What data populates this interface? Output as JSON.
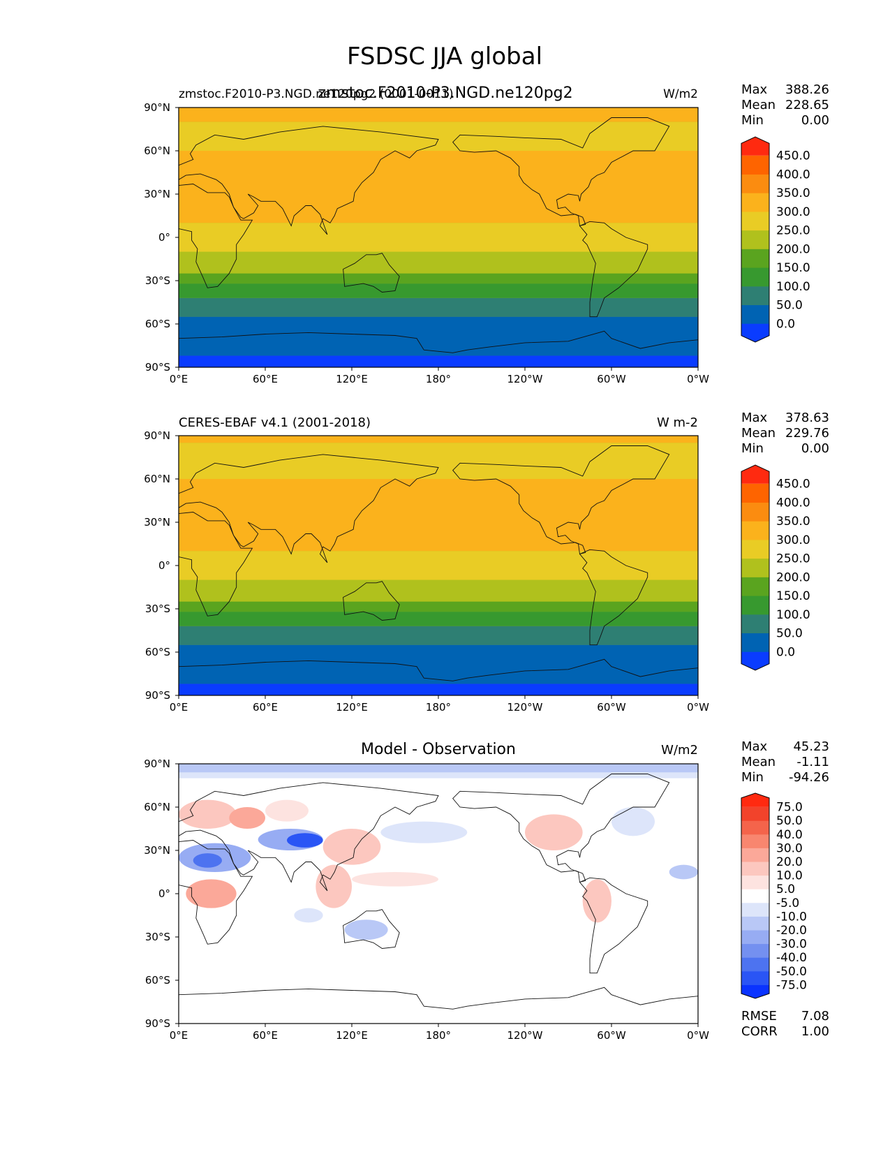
{
  "figure": {
    "title": "FSDSC JJA global"
  },
  "panels": [
    {
      "name": "model",
      "title_left": "zmstoc.F2010-P3.NGD.ne120pg2 (0001-0011)",
      "title_center": "zmstoc.F2010-P3.NGD.ne120pg2",
      "units": "W/m2",
      "stats": {
        "max_label": "Max",
        "max": "388.26",
        "mean_label": "Mean",
        "mean": "228.65",
        "min_label": "Min",
        "min": "0.00"
      },
      "zonal_bands": [
        {
          "lat_top": 90,
          "lat_bottom": 80,
          "value": 300
        },
        {
          "lat_top": 80,
          "lat_bottom": 60,
          "value": 280
        },
        {
          "lat_top": 60,
          "lat_bottom": 10,
          "value": 320
        },
        {
          "lat_top": 10,
          "lat_bottom": 0,
          "value": 280
        },
        {
          "lat_top": 0,
          "lat_bottom": -10,
          "value": 260
        },
        {
          "lat_top": -10,
          "lat_bottom": -25,
          "value": 225
        },
        {
          "lat_top": -25,
          "lat_bottom": -32,
          "value": 175
        },
        {
          "lat_top": -32,
          "lat_bottom": -42,
          "value": 125
        },
        {
          "lat_top": -42,
          "lat_bottom": -55,
          "value": 75
        },
        {
          "lat_top": -55,
          "lat_bottom": -82,
          "value": 25
        },
        {
          "lat_top": -82,
          "lat_bottom": -90,
          "value": -10
        }
      ]
    },
    {
      "name": "observation",
      "title_left": "CERES-EBAF v4.1 (2001-2018)",
      "title_center": "",
      "units": "W m-2",
      "stats": {
        "max_label": "Max",
        "max": "378.63",
        "mean_label": "Mean",
        "mean": "229.76",
        "min_label": "Min",
        "min": "0.00"
      },
      "zonal_bands": [
        {
          "lat_top": 90,
          "lat_bottom": 85,
          "value": 320
        },
        {
          "lat_top": 85,
          "lat_bottom": 60,
          "value": 280
        },
        {
          "lat_top": 60,
          "lat_bottom": 10,
          "value": 320
        },
        {
          "lat_top": 10,
          "lat_bottom": 0,
          "value": 280
        },
        {
          "lat_top": 0,
          "lat_bottom": -10,
          "value": 260
        },
        {
          "lat_top": -10,
          "lat_bottom": -25,
          "value": 225
        },
        {
          "lat_top": -25,
          "lat_bottom": -32,
          "value": 175
        },
        {
          "lat_top": -32,
          "lat_bottom": -42,
          "value": 125
        },
        {
          "lat_top": -42,
          "lat_bottom": -55,
          "value": 75
        },
        {
          "lat_top": -55,
          "lat_bottom": -82,
          "value": 25
        },
        {
          "lat_top": -82,
          "lat_bottom": -90,
          "value": -10
        }
      ]
    },
    {
      "name": "difference",
      "title_left": "",
      "title_center": "Model - Observation",
      "units": "W/m2",
      "stats": {
        "max_label": "Max",
        "max": "45.23",
        "mean_label": "Mean",
        "mean": "-1.11",
        "min_label": "Min",
        "min": "-94.26"
      },
      "metrics": {
        "rmse_label": "RMSE",
        "rmse": "7.08",
        "corr_label": "CORR",
        "corr": "1.00"
      },
      "zonal_bands": [
        {
          "lat_top": 90,
          "lat_bottom": 84,
          "value": -12
        },
        {
          "lat_top": 84,
          "lat_bottom": 80,
          "value": -7
        }
      ],
      "anomalies": [
        {
          "lon_min": 0,
          "lon_max": 40,
          "lat_min": 45,
          "lat_max": 65,
          "value": 12
        },
        {
          "lon_min": 35,
          "lon_max": 60,
          "lat_min": 45,
          "lat_max": 60,
          "value": 25
        },
        {
          "lon_min": 60,
          "lon_max": 90,
          "lat_min": 50,
          "lat_max": 65,
          "value": 7
        },
        {
          "lon_min": 0,
          "lon_max": 50,
          "lat_min": 15,
          "lat_max": 35,
          "value": -30
        },
        {
          "lon_min": 10,
          "lon_max": 30,
          "lat_min": 18,
          "lat_max": 28,
          "value": -45
        },
        {
          "lon_min": 55,
          "lon_max": 100,
          "lat_min": 30,
          "lat_max": 45,
          "value": -25
        },
        {
          "lon_min": 75,
          "lon_max": 100,
          "lat_min": 32,
          "lat_max": 42,
          "value": -60
        },
        {
          "lon_min": 100,
          "lon_max": 140,
          "lat_min": 20,
          "lat_max": 45,
          "value": 12
        },
        {
          "lon_min": 140,
          "lon_max": 200,
          "lat_min": 35,
          "lat_max": 50,
          "value": -7
        },
        {
          "lon_min": 95,
          "lon_max": 120,
          "lat_min": -10,
          "lat_max": 20,
          "value": 15
        },
        {
          "lon_min": 120,
          "lon_max": 180,
          "lat_min": 5,
          "lat_max": 15,
          "value": 7
        },
        {
          "lon_min": 5,
          "lon_max": 40,
          "lat_min": -10,
          "lat_max": 10,
          "value": 25
        },
        {
          "lon_min": 80,
          "lon_max": 100,
          "lat_min": -20,
          "lat_max": -10,
          "value": -7
        },
        {
          "lon_min": 115,
          "lon_max": 145,
          "lat_min": -32,
          "lat_max": -18,
          "value": -12
        },
        {
          "lon_min": 240,
          "lon_max": 280,
          "lat_min": 30,
          "lat_max": 55,
          "value": 15
        },
        {
          "lon_min": 280,
          "lon_max": 300,
          "lat_min": -20,
          "lat_max": 10,
          "value": 15
        },
        {
          "lon_min": 300,
          "lon_max": 330,
          "lat_min": 40,
          "lat_max": 60,
          "value": -7
        },
        {
          "lon_min": 340,
          "lon_max": 360,
          "lat_min": 10,
          "lat_max": 20,
          "value": -12
        }
      ]
    }
  ],
  "colorbars": {
    "absolute": {
      "levels": [
        0,
        50,
        100,
        150,
        200,
        250,
        300,
        350,
        400,
        450
      ],
      "tick_labels": [
        "0.0",
        "50.0",
        "100.0",
        "150.0",
        "200.0",
        "250.0",
        "300.0",
        "350.0",
        "400.0",
        "450.0"
      ],
      "colors": [
        "#0a3cff",
        "#0063b3",
        "#2e7f73",
        "#37992f",
        "#5aa41f",
        "#b0c11d",
        "#e9cc25",
        "#fbb21c",
        "#fb8c10",
        "#fe6400",
        "#ff2a10"
      ]
    },
    "difference": {
      "levels": [
        -75,
        -50,
        -40,
        -30,
        -20,
        -10,
        -5,
        5,
        10,
        20,
        30,
        40,
        50,
        75
      ],
      "tick_labels": [
        "-75.0",
        "-50.0",
        "-40.0",
        "-30.0",
        "-20.0",
        "-10.0",
        "-5.0",
        "5.0",
        "10.0",
        "20.0",
        "30.0",
        "40.0",
        "50.0",
        "75.0"
      ],
      "colors": [
        "#0a33ff",
        "#2a55f5",
        "#4d73f0",
        "#7490f0",
        "#97acf3",
        "#b9c8f6",
        "#dde5fa",
        "#ffffff",
        "#fde3e0",
        "#fcc7bf",
        "#fba899",
        "#f8866f",
        "#f4644b",
        "#f2432b",
        "#ff2a10"
      ]
    }
  },
  "axes": {
    "lat_ticks": [
      "90°N",
      "60°N",
      "30°N",
      "0°",
      "30°S",
      "60°S",
      "90°S"
    ],
    "lon_ticks": [
      "0°E",
      "60°E",
      "120°E",
      "180°",
      "120°W",
      "60°W",
      "0°W"
    ]
  }
}
